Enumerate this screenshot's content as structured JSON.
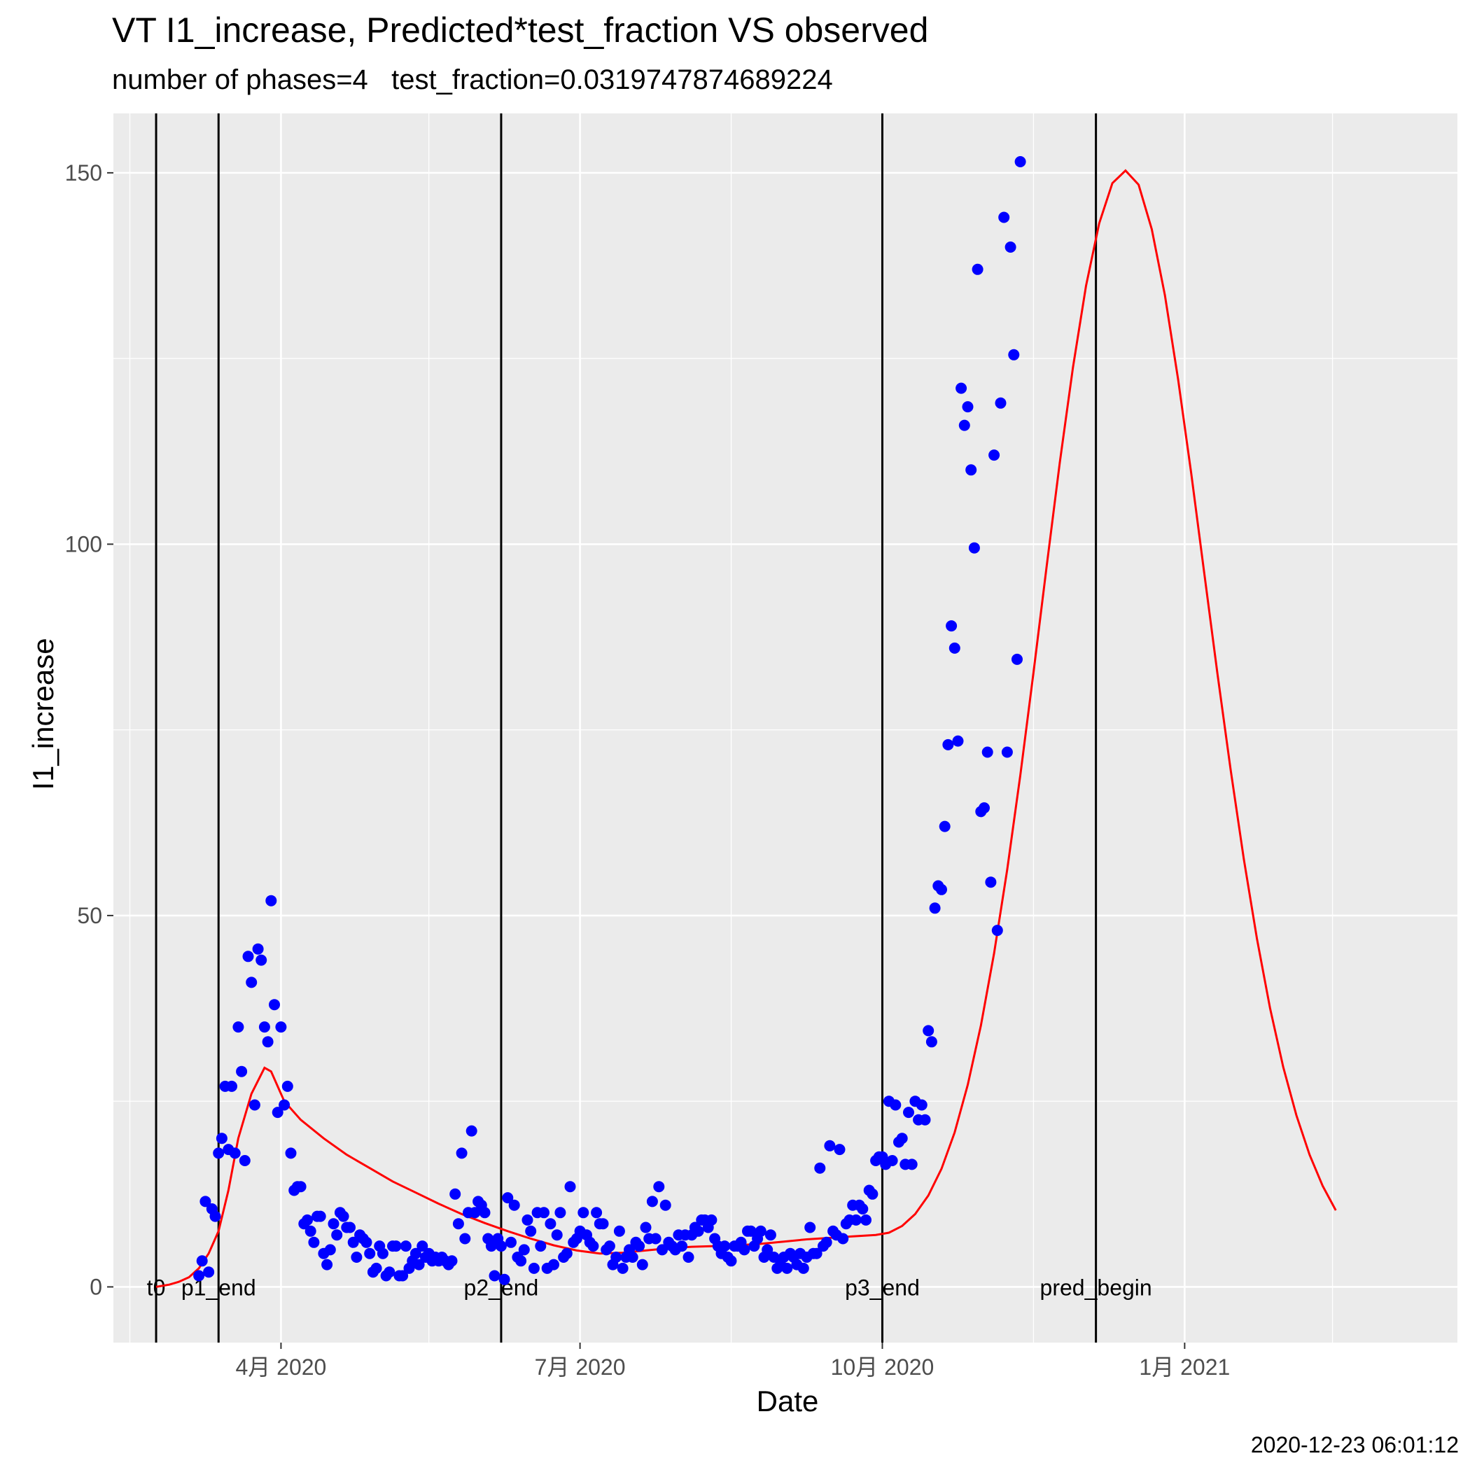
{
  "chart_data": {
    "type": "line",
    "title": "VT I1_increase, Predicted*test_fraction VS observed",
    "subtitle": "number of phases=4   test_fraction=0.0319747874689224",
    "xlabel": "Date",
    "ylabel": "I1_increase",
    "caption": "2020-12-23 06:01:12",
    "xlim": [
      "2020-02-10",
      "2021-03-25"
    ],
    "ylim": [
      -7.5,
      158
    ],
    "grid": true,
    "x_ticks": [
      {
        "date": "2020-04-01",
        "label": "4月 2020"
      },
      {
        "date": "2020-07-01",
        "label": "7月 2020"
      },
      {
        "date": "2020-10-01",
        "label": "10月 2020"
      },
      {
        "date": "2021-01-01",
        "label": "1月 2021"
      }
    ],
    "x_minor_grid": [
      "2020-02-15",
      "2020-05-16",
      "2020-08-16",
      "2020-11-16",
      "2021-02-15"
    ],
    "y_ticks": [
      0,
      50,
      100,
      150
    ],
    "y_minor_grid": [
      25,
      75,
      125
    ],
    "vlines": [
      {
        "label": "t0",
        "date": "2020-02-23"
      },
      {
        "label": "p1_end",
        "date": "2020-03-13"
      },
      {
        "label": "p2_end",
        "date": "2020-06-07"
      },
      {
        "label": "p3_end",
        "date": "2020-10-01"
      },
      {
        "label": "pred_begin",
        "date": "2020-12-05"
      }
    ],
    "series": [
      {
        "type": "scatter",
        "color": "#0000ff",
        "start_date": "2020-03-07",
        "values": [
          1.5,
          3.5,
          11.5,
          2,
          10.5,
          9.5,
          18,
          20,
          27,
          18.5,
          27,
          18,
          35,
          29,
          17,
          44.5,
          41,
          24.5,
          45.5,
          44,
          35,
          33,
          52,
          38,
          23.5,
          35,
          24.5,
          27,
          18,
          13,
          13.5,
          13.5,
          8.5,
          9,
          7.5,
          6,
          9.5,
          9.5,
          4.5,
          3,
          5,
          8.5,
          7,
          10,
          9.5,
          8,
          8,
          6,
          4,
          7,
          6.5,
          6,
          4.5,
          2,
          2.5,
          5.5,
          4.5,
          1.5,
          2,
          5.5,
          5.5,
          1.5,
          1.5,
          5.5,
          2.5,
          3.5,
          4.5,
          3,
          5.5,
          4,
          4.5,
          3.5,
          4,
          3.5,
          4,
          3.5,
          3,
          3.5,
          12.5,
          8.5,
          18,
          6.5,
          10,
          21,
          10,
          11.5,
          11,
          10,
          6.5,
          5.5,
          1.5,
          6.5,
          5.5,
          1,
          12,
          6,
          11,
          4,
          3.5,
          5,
          9,
          7.5,
          2.5,
          10,
          5.5,
          10,
          2.5,
          8.5,
          3,
          7,
          10,
          4,
          4.5,
          13.5,
          6,
          6.5,
          7.5,
          10,
          7,
          6,
          5.5,
          10,
          8.5,
          8.5,
          5,
          5.5,
          3,
          4,
          7.5,
          2.5,
          4,
          5,
          4,
          6,
          5.5,
          3,
          8,
          6.5,
          11.5,
          6.5,
          13.5,
          5,
          11,
          6,
          5.5,
          5,
          7,
          5.5,
          7,
          4,
          7,
          8,
          7.5,
          9,
          9,
          8,
          9,
          6.5,
          5.5,
          4.5,
          5.5,
          4,
          3.5,
          5.5,
          5.5,
          6,
          5,
          7.5,
          7.5,
          5.5,
          6.5,
          7.5,
          4,
          5,
          7,
          4,
          2.5,
          3,
          4,
          2.5,
          4.5,
          4,
          3,
          4.5,
          2.5,
          4,
          8,
          4.5,
          4.5,
          16,
          5.5,
          6,
          19,
          7.5,
          7,
          18.5,
          6.5,
          8.5,
          9,
          11,
          9,
          11,
          10.5,
          9,
          13,
          12.5,
          17,
          17.5,
          17.5,
          16.5,
          25,
          17,
          24.5,
          19.5,
          20,
          16.5,
          23.5,
          16.5,
          25,
          22.5,
          24.5,
          22.5,
          34.5,
          33,
          51,
          54,
          53.5,
          62,
          73,
          89,
          86,
          73.5,
          121,
          116,
          118.5,
          110,
          99.5,
          137,
          64,
          64.5,
          72,
          54.5,
          112,
          48,
          119,
          144,
          72,
          140,
          125.5,
          84.5,
          151.5
        ]
      },
      {
        "type": "line",
        "color": "#ff0000",
        "points": [
          [
            "2020-02-23",
            0
          ],
          [
            "2020-02-27",
            0.3
          ],
          [
            "2020-03-01",
            0.7
          ],
          [
            "2020-03-04",
            1.3
          ],
          [
            "2020-03-07",
            2.5
          ],
          [
            "2020-03-10",
            4.5
          ],
          [
            "2020-03-13",
            7.5
          ],
          [
            "2020-03-16",
            13
          ],
          [
            "2020-03-19",
            20
          ],
          [
            "2020-03-23",
            26
          ],
          [
            "2020-03-27",
            29.5
          ],
          [
            "2020-03-29",
            29
          ],
          [
            "2020-04-02",
            25
          ],
          [
            "2020-04-07",
            22.5
          ],
          [
            "2020-04-14",
            20
          ],
          [
            "2020-04-21",
            17.8
          ],
          [
            "2020-04-28",
            16
          ],
          [
            "2020-05-05",
            14.2
          ],
          [
            "2020-05-12",
            12.7
          ],
          [
            "2020-05-19",
            11.2
          ],
          [
            "2020-05-26",
            9.8
          ],
          [
            "2020-06-02",
            8.6
          ],
          [
            "2020-06-09",
            7.5
          ],
          [
            "2020-06-16",
            6.5
          ],
          [
            "2020-06-23",
            5.6
          ],
          [
            "2020-06-30",
            4.9
          ],
          [
            "2020-07-07",
            4.5
          ],
          [
            "2020-07-14",
            4.6
          ],
          [
            "2020-07-21",
            4.9
          ],
          [
            "2020-07-28",
            5.2
          ],
          [
            "2020-08-04",
            5.4
          ],
          [
            "2020-08-11",
            5.5
          ],
          [
            "2020-08-18",
            5.6
          ],
          [
            "2020-08-25",
            5.8
          ],
          [
            "2020-09-01",
            6.1
          ],
          [
            "2020-09-08",
            6.4
          ],
          [
            "2020-09-15",
            6.6
          ],
          [
            "2020-09-22",
            6.8
          ],
          [
            "2020-09-29",
            7
          ],
          [
            "2020-10-03",
            7.3
          ],
          [
            "2020-10-07",
            8.2
          ],
          [
            "2020-10-11",
            9.8
          ],
          [
            "2020-10-15",
            12.3
          ],
          [
            "2020-10-19",
            15.9
          ],
          [
            "2020-10-23",
            20.8
          ],
          [
            "2020-10-27",
            27.2
          ],
          [
            "2020-10-31",
            35.2
          ],
          [
            "2020-11-04",
            44.9
          ],
          [
            "2020-11-08",
            56.2
          ],
          [
            "2020-11-12",
            68.9
          ],
          [
            "2020-11-16",
            82.7
          ],
          [
            "2020-11-20",
            97
          ],
          [
            "2020-11-24",
            111
          ],
          [
            "2020-11-28",
            123.8
          ],
          [
            "2020-12-02",
            134.8
          ],
          [
            "2020-12-06",
            143.2
          ],
          [
            "2020-12-10",
            148.6
          ],
          [
            "2020-12-14",
            150.3
          ],
          [
            "2020-12-18",
            148.4
          ],
          [
            "2020-12-22",
            142.4
          ],
          [
            "2020-12-26",
            133.5
          ],
          [
            "2020-12-30",
            122.2
          ],
          [
            "2021-01-03",
            109.5
          ],
          [
            "2021-01-07",
            96
          ],
          [
            "2021-01-11",
            82.5
          ],
          [
            "2021-01-15",
            69.6
          ],
          [
            "2021-01-19",
            57.6
          ],
          [
            "2021-01-23",
            46.9
          ],
          [
            "2021-01-27",
            37.5
          ],
          [
            "2021-01-31",
            29.6
          ],
          [
            "2021-02-04",
            23.1
          ],
          [
            "2021-02-08",
            17.8
          ],
          [
            "2021-02-12",
            13.6
          ],
          [
            "2021-02-16",
            10.3
          ]
        ]
      }
    ]
  }
}
